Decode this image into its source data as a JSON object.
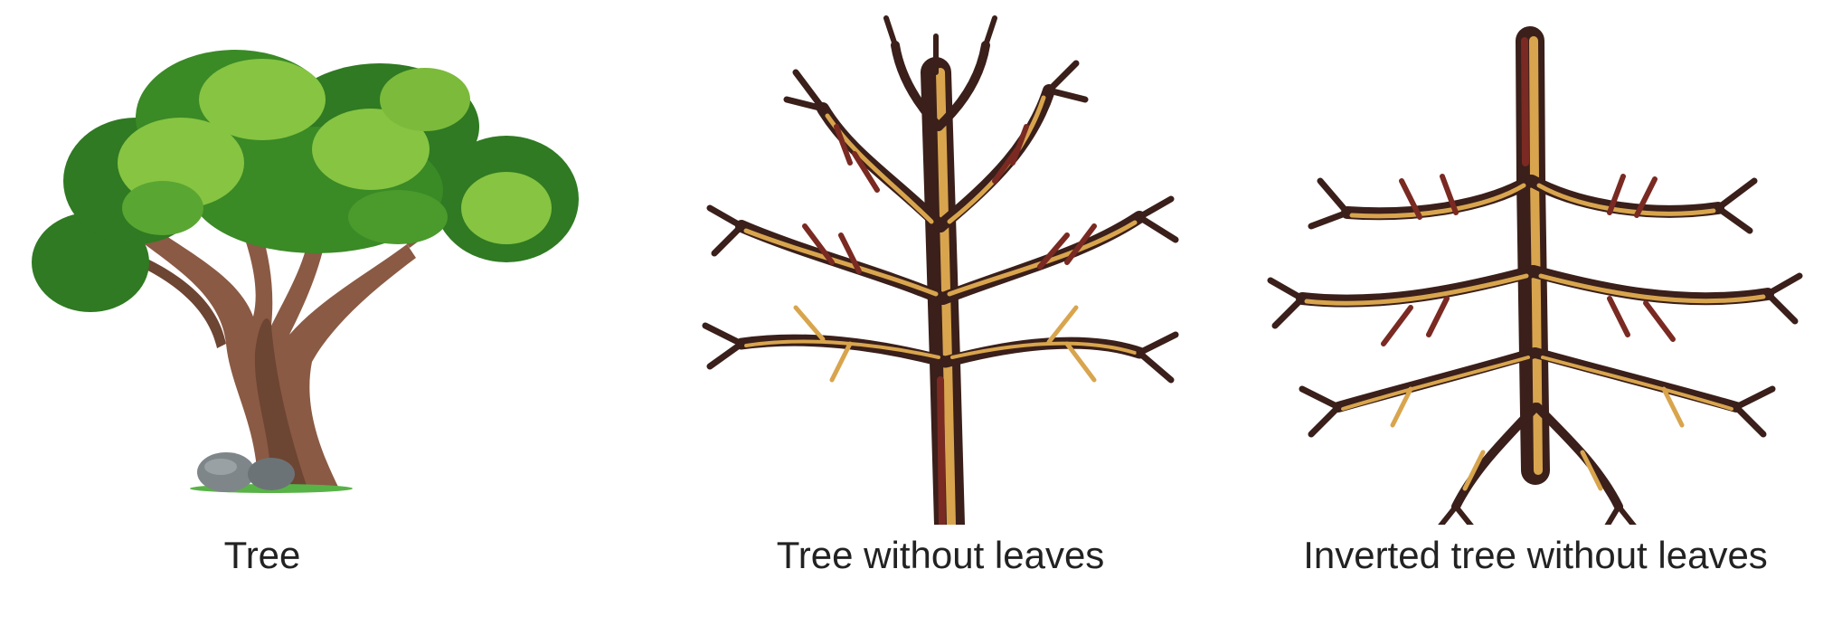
{
  "figures": [
    {
      "id": "tree",
      "caption": "Tree",
      "illustration": "leafy-tree-icon"
    },
    {
      "id": "bare",
      "caption": "Tree without leaves",
      "illustration": "bare-tree-icon"
    },
    {
      "id": "inverted",
      "caption": "Inverted tree without leaves",
      "illustration": "inverted-bare-tree-icon"
    }
  ],
  "colors": {
    "foliage_dark": "#2f7a22",
    "foliage_mid": "#4a9a2c",
    "foliage_light": "#86c442",
    "trunk": "#8a5a44",
    "trunk_dark": "#5e3a2a",
    "branch_light": "#d8a54e",
    "branch_dark": "#3a1f1a",
    "branch_red": "#7a2a22",
    "caption_text": "#222222"
  }
}
